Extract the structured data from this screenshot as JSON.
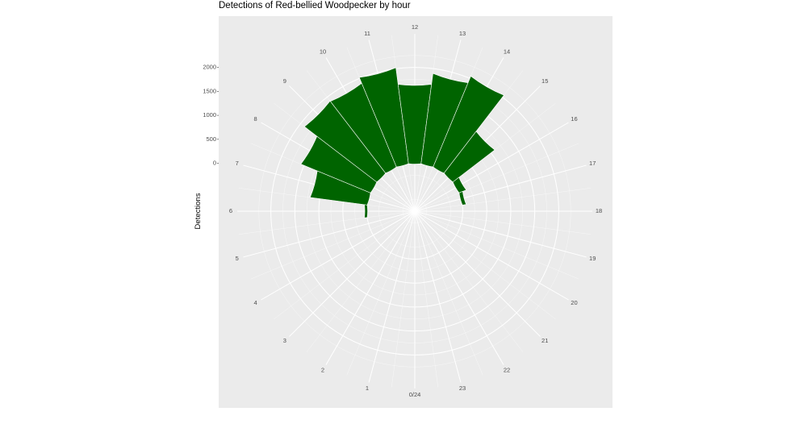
{
  "colors": {
    "panel": "#ebebeb",
    "grid": "#ffffff",
    "bar": "#006400",
    "tick_text": "#4d4d4d"
  },
  "chart_data": {
    "type": "bar",
    "coordinate_system": "polar",
    "title": "Detections of Red-bellied Woodpecker by hour",
    "xlabel": "",
    "ylabel": "Detections",
    "ylim": [
      -1000,
      2700
    ],
    "y_ticks": [
      0,
      500,
      1000,
      1500,
      2000
    ],
    "x_tick_labels": [
      "0/24",
      "1",
      "2",
      "3",
      "4",
      "5",
      "6",
      "7",
      "8",
      "9",
      "10",
      "11",
      "12",
      "13",
      "14",
      "15",
      "16",
      "17",
      "18",
      "19",
      "20",
      "21",
      "22",
      "23"
    ],
    "categories": [
      0,
      1,
      2,
      3,
      4,
      5,
      6,
      7,
      8,
      9,
      10,
      11,
      12,
      13,
      14,
      15,
      16,
      17,
      18,
      19,
      20,
      21,
      22,
      23
    ],
    "values": [
      0,
      0,
      0,
      0,
      0,
      0,
      60,
      1200,
      1570,
      1900,
      1890,
      2020,
      1670,
      1900,
      2050,
      1100,
      160,
      80,
      0,
      0,
      0,
      0,
      0,
      0
    ],
    "grid": true,
    "legend": "none"
  }
}
